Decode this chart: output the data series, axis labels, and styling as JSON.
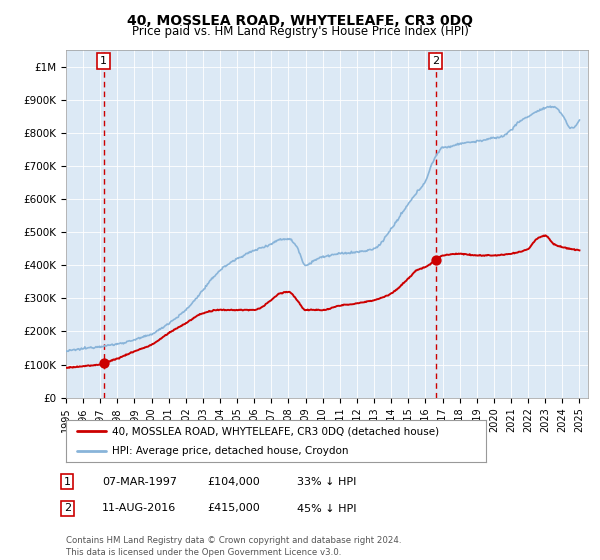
{
  "title": "40, MOSSLEA ROAD, WHYTELEAFE, CR3 0DQ",
  "subtitle": "Price paid vs. HM Land Registry's House Price Index (HPI)",
  "legend_line1": "40, MOSSLEA ROAD, WHYTELEAFE, CR3 0DQ (detached house)",
  "legend_line2": "HPI: Average price, detached house, Croydon",
  "footnote": "Contains HM Land Registry data © Crown copyright and database right 2024.\nThis data is licensed under the Open Government Licence v3.0.",
  "sale1_date": "07-MAR-1997",
  "sale1_price": 104000,
  "sale1_note": "33% ↓ HPI",
  "sale2_date": "11-AUG-2016",
  "sale2_price": 415000,
  "sale2_note": "45% ↓ HPI",
  "sale1_year": 1997.2,
  "sale2_year": 2016.6,
  "price_line_color": "#cc0000",
  "hpi_line_color": "#89b4d9",
  "vline_color": "#cc0000",
  "dot_color": "#cc0000",
  "plot_bg_color": "#dce9f5",
  "ylim_max": 1050000,
  "xlim_start": 1995.0,
  "xlim_end": 2025.5
}
